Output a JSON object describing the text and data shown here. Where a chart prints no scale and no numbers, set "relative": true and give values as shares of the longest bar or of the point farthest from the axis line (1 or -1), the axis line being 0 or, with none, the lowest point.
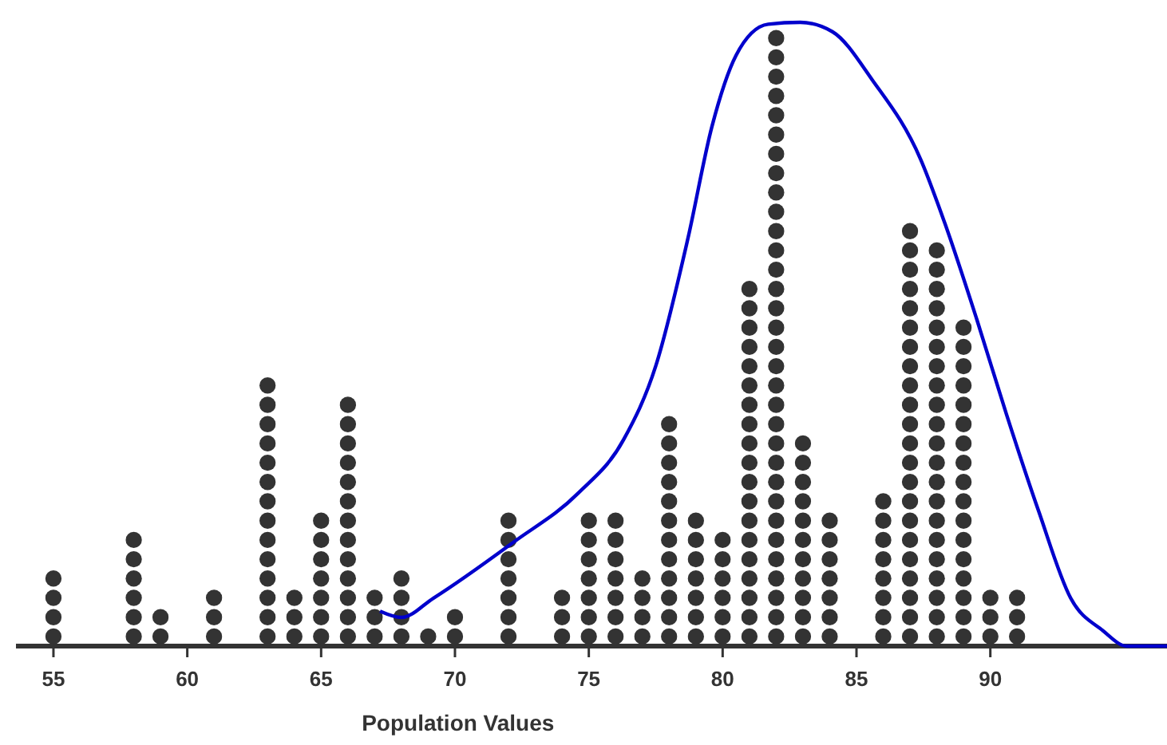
{
  "chart_data": {
    "type": "bar",
    "relative": true,
    "xlabel": "Population Values",
    "xlim": [
      53.6,
      96.6
    ],
    "xticks": [
      55,
      60,
      65,
      70,
      75,
      80,
      85,
      90
    ],
    "tick_labels": "x",
    "grid": false,
    "series": [
      {
        "color": "#333333",
        "x": [
          55,
          58,
          59,
          61,
          63,
          64,
          65,
          66,
          67,
          68,
          69,
          70,
          72,
          74,
          75,
          76,
          77,
          78,
          79,
          80,
          81,
          82,
          83,
          84,
          86,
          87,
          88,
          89,
          90,
          91
        ],
        "values": [
          0.124,
          0.186,
          0.062,
          0.093,
          0.433,
          0.093,
          0.217,
          0.402,
          0.093,
          0.124,
          0.031,
          0.062,
          0.217,
          0.093,
          0.217,
          0.217,
          0.124,
          0.372,
          0.217,
          0.186,
          0.588,
          0.991,
          0.341,
          0.217,
          0.248,
          0.681,
          0.65,
          0.526,
          0.093,
          0.093
        ]
      },
      {
        "type": "line",
        "color": "#0000cc",
        "x": [
          67.2,
          68.0,
          69.2,
          72.2,
          74.6,
          76.3,
          77.5,
          78.7,
          79.6,
          80.5,
          81.7,
          82.9,
          84.1,
          85.6,
          87.4,
          88.3,
          89.5,
          90.6,
          91.8,
          93.0,
          94.2,
          95.1,
          96.6
        ],
        "values": [
          0.056,
          0.046,
          0.077,
          0.167,
          0.245,
          0.331,
          0.449,
          0.653,
          0.833,
          0.947,
          0.997,
          1,
          0.985,
          0.907,
          0.78,
          0.678,
          0.523,
          0.372,
          0.217,
          0.077,
          0.025,
          0,
          0
        ]
      }
    ]
  }
}
